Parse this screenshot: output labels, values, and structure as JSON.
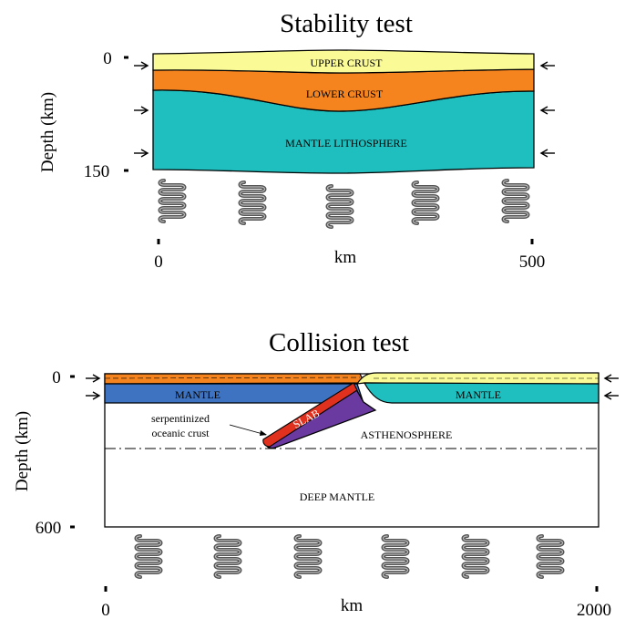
{
  "stability": {
    "title": "Stability test",
    "ylabel": "Depth (km)",
    "y_ticks": [
      "0",
      "150"
    ],
    "x_ticks": [
      "0",
      "500"
    ],
    "xlabel": "km",
    "layers": {
      "upper": "UPPER CRUST",
      "lower": "LOWER CRUST",
      "mantle": "MANTLE LITHOSPHERE"
    }
  },
  "collision": {
    "title": "Collision test",
    "ylabel": "Depth (km)",
    "y_ticks": [
      "0",
      "600"
    ],
    "x_ticks": [
      "0",
      "2000"
    ],
    "xlabel": "km",
    "labels": {
      "mantle_left": "MANTLE",
      "mantle_right": "MANTLE",
      "slab": "SLAB",
      "serp_line1": "serpentinized",
      "serp_line2": "oceanic crust",
      "asthenosphere": "ASTHENOSPHERE",
      "deep_mantle": "DEEP MANTLE"
    }
  },
  "colors": {
    "upper_crust": "#fafa96",
    "lower_crust": "#f5841f",
    "mantle_lithosphere": "#1fbfbf",
    "mantle_left": "#3d73c0",
    "slab": "#6b3aa0",
    "serpentinite": "#e0301e",
    "spring": "#555555"
  }
}
